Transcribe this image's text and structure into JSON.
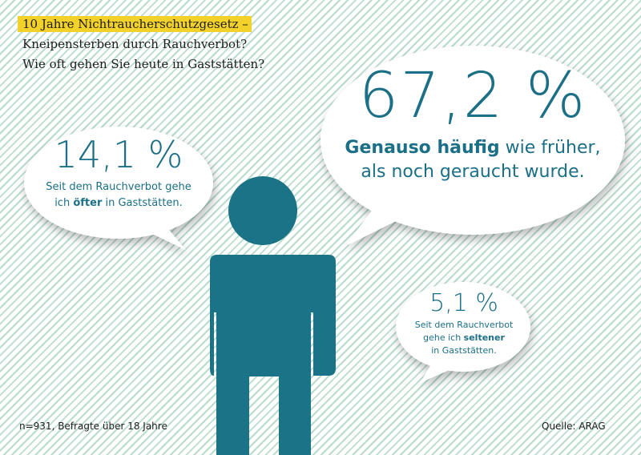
{
  "title": {
    "line1": "10 Jahre Nichtraucherschutzgesetz –",
    "line2": "Kneipensterben durch Rauchverbot?",
    "line3": "Wie oft gehen Sie heute in Gaststätten?"
  },
  "colors": {
    "figure": "#1b7387",
    "text": "#1b6f86",
    "highlight": "#f2d12a",
    "stripes": "#b9dccd"
  },
  "chart_data": {
    "type": "pie",
    "categories": [
      "öfter",
      "genauso häufig",
      "seltener"
    ],
    "values": [
      14.1,
      67.2,
      5.1
    ],
    "unit": "%",
    "items": [
      {
        "value": "14,1 %",
        "pre": "Seit dem Rauchverbot gehe",
        "pre2": "ich ",
        "bold": "öfter",
        "post": " in Gaststätten."
      },
      {
        "value": "67,2 %",
        "bold": "Genauso häufig",
        "post": " wie früher,",
        "line2": "als noch geraucht wurde."
      },
      {
        "value": "5,1 %",
        "line1": "Seit dem Rauchverbot",
        "pre": "gehe ich ",
        "bold": "seltener",
        "line3": "in Gaststätten."
      }
    ]
  },
  "footer": {
    "sample": "n=931, Befragte über 18 Jahre",
    "source": "Quelle: ARAG"
  }
}
